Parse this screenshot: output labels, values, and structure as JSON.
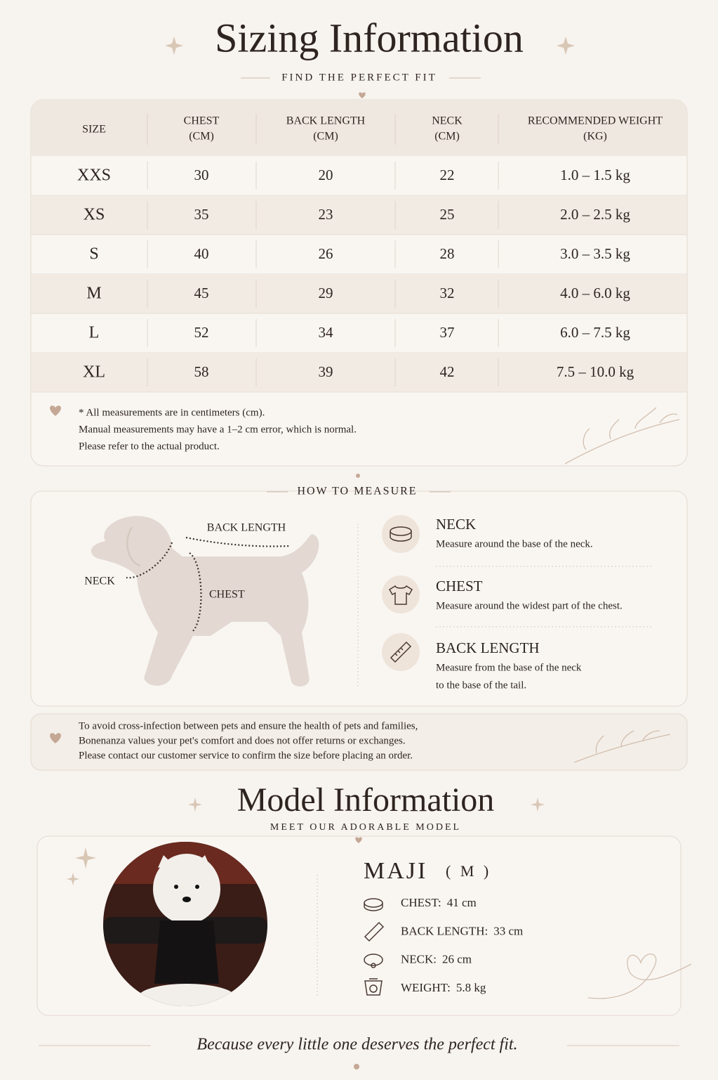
{
  "header": {
    "title": "Sizing Information",
    "subtitle": "FIND THE PERFECT FIT"
  },
  "table": {
    "columns": [
      {
        "label": "SIZE"
      },
      {
        "label": "CHEST",
        "unit": "(CM)"
      },
      {
        "label": "BACK LENGTH",
        "unit": "(CM)"
      },
      {
        "label": "NECK",
        "unit": "(CM)"
      },
      {
        "label": "RECOMMENDED WEIGHT",
        "unit": "(KG)"
      }
    ],
    "rows": [
      [
        "XXS",
        30,
        20,
        22,
        "1.0 – 1.5 kg"
      ],
      [
        "XS",
        35,
        23,
        25,
        "2.0 – 2.5 kg"
      ],
      [
        "S",
        40,
        26,
        28,
        "3.0 – 3.5 kg"
      ],
      [
        "M",
        45,
        29,
        32,
        "4.0 – 6.0 kg"
      ],
      [
        "L",
        52,
        34,
        37,
        "6.0 – 7.5 kg"
      ],
      [
        "XL",
        58,
        39,
        42,
        "7.5 – 10.0 kg"
      ]
    ],
    "notes": [
      "* All measurements are in centimeters (cm).",
      "Manual measurements may have a 1–2 cm error, which is normal.",
      "Please refer to the actual product."
    ]
  },
  "measure": {
    "title": "HOW TO MEASURE",
    "diagram_labels": {
      "back_length": "BACK LENGTH",
      "neck": "NECK",
      "chest": "CHEST"
    },
    "items": [
      {
        "name": "NECK",
        "description": [
          "Measure around the base of the neck."
        ]
      },
      {
        "name": "CHEST",
        "description": [
          "Measure around the widest part of the chest."
        ]
      },
      {
        "name": "BACK LENGTH",
        "description": [
          "Measure from the base of the neck",
          "to the base of the tail."
        ]
      }
    ]
  },
  "notice": [
    "To avoid cross-infection between pets and ensure the health of pets and families,",
    "Bonenanza values your pet's comfort and does not offer returns or exchanges.",
    "Please contact our customer service to confirm the size before placing an order."
  ],
  "model": {
    "title": "Model Information",
    "subtitle": "MEET OUR ADORABLE MODEL",
    "name": "MAJI",
    "size": "( M )",
    "stats": [
      {
        "label": "CHEST:",
        "value": "41 cm"
      },
      {
        "label": "BACK LENGTH:",
        "value": "33 cm"
      },
      {
        "label": "NECK:",
        "value": "26 cm"
      },
      {
        "label": "WEIGHT:",
        "value": "5.8 kg"
      }
    ]
  },
  "footer": "Because every little one deserves the perfect fit."
}
